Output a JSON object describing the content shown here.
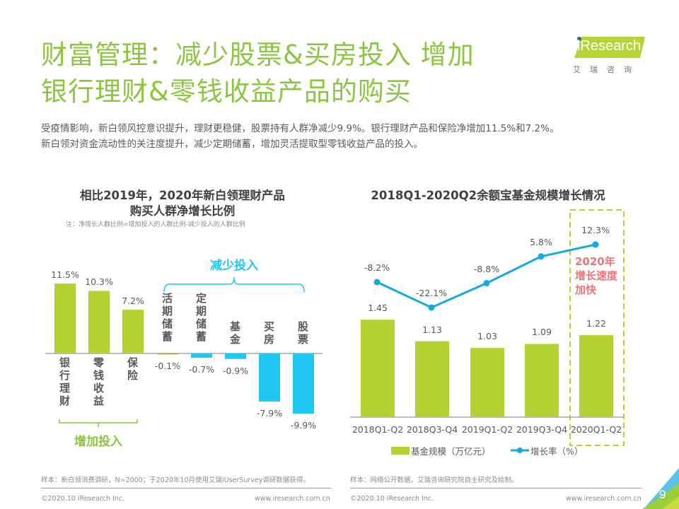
{
  "header": {
    "title_line1": "财富管理：减少股票&买房投入  增加",
    "title_line2": "银行理财&零钱收益产品的购买",
    "subtitle_line1": "受疫情影响，新白领风控意识提升，理财更稳健，股票持有人群净减少9.9%。银行理财产品和保险净增加11.5%和7.2%。",
    "subtitle_line2": "新白领对资金流动性的关注度提升，减少定期储蓄，增加灵活提取型零钱收益产品的投入。"
  },
  "logo": {
    "brand": "iResearch",
    "cn": "艾瑞咨询"
  },
  "colors": {
    "title_green": "#8cc540",
    "bar_green": "#b3d233",
    "bar_blue": "#1fc8f2",
    "line_blue": "#16a8e0",
    "annot_pink": "#f0737d"
  },
  "chart_data": [
    {
      "type": "bar",
      "title_line1": "相比2019年，2020年新白领理财产品",
      "title_line2": "购买人群净增长比例",
      "note": "注：净增长人群比例=增加投入的人群比例-减少投入的人群比例",
      "categories": [
        "银行理财",
        "零钱收益",
        "保险",
        "活期储蓄",
        "定期储蓄",
        "基金",
        "买房",
        "股票"
      ],
      "values": [
        11.5,
        10.3,
        7.2,
        -0.1,
        -0.7,
        -0.9,
        -7.9,
        -9.9
      ],
      "value_labels": [
        "11.5%",
        "10.3%",
        "7.2%",
        "-0.1%",
        "-0.7%",
        "-0.9%",
        "-7.9%",
        "-9.9%"
      ],
      "unit": "%",
      "groups": [
        {
          "label": "增加投入",
          "categories": [
            "银行理财",
            "零钱收益",
            "保险"
          ],
          "color": "#8cc540"
        },
        {
          "label": "减少投入",
          "categories": [
            "活期储蓄",
            "定期储蓄",
            "基金",
            "买房",
            "股票"
          ],
          "color": "#1fc8f2"
        }
      ],
      "source": "样本：新白领消费调研，N=2000；于2020年10月使用艾瑞iUserSurvey调研数据获得。"
    },
    {
      "type": "bar+line",
      "title": "2018Q1-2020Q2余额宝基金规模增长情况",
      "categories": [
        "2018Q1-Q2",
        "2018Q3-Q4",
        "2019Q1-Q2",
        "2019Q3-Q4",
        "2020Q1-Q2"
      ],
      "series": [
        {
          "name": "基金规模（万亿元）",
          "type": "bar",
          "values": [
            1.45,
            1.13,
            1.03,
            1.09,
            1.22
          ],
          "labels": [
            "1.45",
            "1.13",
            "1.03",
            "1.09",
            "1.22"
          ]
        },
        {
          "name": "增长率（%）",
          "type": "line",
          "values": [
            -8.2,
            -22.1,
            -8.8,
            5.8,
            12.3
          ],
          "labels": [
            "-8.2%",
            "-22.1%",
            "-8.8%",
            "5.8%",
            "12.3%"
          ]
        }
      ],
      "highlight": {
        "category": "2020Q1-Q2",
        "annotation_lines": [
          "2020年",
          "增长速度",
          "加快"
        ]
      },
      "legend_position": "bottom",
      "source": "样本：网络公开数据，艾瑞咨询研究院自主研究及绘制。"
    }
  ],
  "footer": {
    "copyright_left": "©2020.10 iResearch Inc.",
    "url_left": "www.iresearch.com.cn",
    "copyright_right": "©2020.10 iResearch Inc.",
    "url_right": "www.iresearch.com.cn",
    "page_number": "9"
  }
}
